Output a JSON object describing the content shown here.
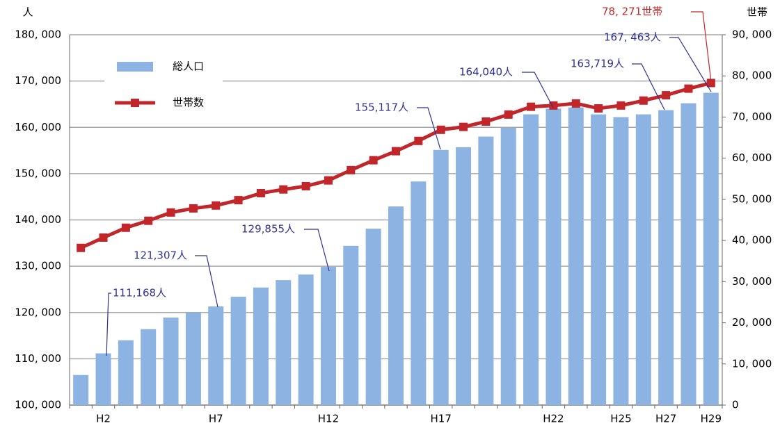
{
  "chart_data": {
    "type": "bar-line",
    "y_label": "人",
    "y2_label": "世帯",
    "categories": [
      "H1",
      "H2",
      "H3",
      "H4",
      "H5",
      "H6",
      "H7",
      "H8",
      "H9",
      "H10",
      "H11",
      "H12",
      "H13",
      "H14",
      "H15",
      "H16",
      "H17",
      "H18",
      "H19",
      "H20",
      "H21",
      "H22",
      "H23",
      "H24",
      "H25",
      "H26",
      "H27",
      "H28",
      "H29"
    ],
    "category_labels": [
      null,
      "H2",
      null,
      null,
      null,
      null,
      "H7",
      null,
      null,
      null,
      null,
      "H12",
      null,
      null,
      null,
      null,
      "H17",
      null,
      null,
      null,
      null,
      "H22",
      null,
      null,
      "H25",
      null,
      "H27",
      null,
      "H29"
    ],
    "series": [
      {
        "name": "総人口",
        "type": "bar",
        "color": "#8db3e2",
        "axis": "y",
        "values": [
          106500,
          111168,
          114000,
          116400,
          118900,
          120000,
          121307,
          123400,
          125400,
          127000,
          128200,
          129855,
          134400,
          138100,
          142900,
          148300,
          155117,
          155700,
          158000,
          159900,
          162800,
          164040,
          164300,
          162800,
          162200,
          162800,
          163719,
          165200,
          167463
        ]
      },
      {
        "name": "世帯数",
        "type": "line",
        "color": "#c0262a",
        "axis": "y2",
        "values": [
          38200,
          40700,
          43100,
          44800,
          46800,
          47800,
          48500,
          49800,
          51500,
          52400,
          53200,
          54600,
          57100,
          59500,
          61700,
          64200,
          66900,
          67600,
          68900,
          70600,
          72500,
          72800,
          73300,
          72100,
          72800,
          74000,
          75300,
          76900,
          78271
        ]
      }
    ],
    "annotations": [
      "111,168人",
      "121,307人",
      "129,855人",
      "155,117人",
      "164,040人",
      "163,719人",
      "167, 463人",
      "78, 271世帯"
    ],
    "ylim": [
      100000,
      180000
    ],
    "yticks": [
      {
        "value": 100000,
        "label": "100, 000"
      },
      {
        "value": 110000,
        "label": "110, 000"
      },
      {
        "value": 120000,
        "label": "120, 000"
      },
      {
        "value": 130000,
        "label": "130, 000"
      },
      {
        "value": 140000,
        "label": "140, 000"
      },
      {
        "value": 150000,
        "label": "150, 000"
      },
      {
        "value": 160000,
        "label": "160, 000"
      },
      {
        "value": 170000,
        "label": "170, 000"
      },
      {
        "value": 180000,
        "label": "180, 000"
      }
    ],
    "y2lim": [
      0,
      90000
    ],
    "y2ticks": [
      0,
      {
        "value": 10000,
        "label": "10, 000"
      },
      {
        "value": 20000,
        "label": "20, 000"
      },
      {
        "value": 30000,
        "label": "30, 000"
      },
      {
        "value": 40000,
        "label": "40, 000"
      },
      {
        "value": 50000,
        "label": "50, 000"
      },
      {
        "value": 60000,
        "label": "60, 000"
      },
      {
        "value": 70000,
        "label": "70, 000"
      },
      {
        "value": 80000,
        "label": "80, 000"
      },
      {
        "value": 90000,
        "label": "90, 000"
      }
    ],
    "grid": true
  }
}
